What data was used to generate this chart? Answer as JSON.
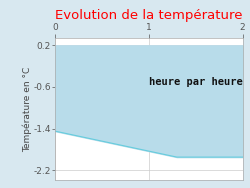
{
  "title": "Evolution de la température",
  "title_color": "#ff0000",
  "ylabel": "Température en °C",
  "xlabel_text": "heure par heure",
  "background_color": "#d8e8f0",
  "plot_bg_color": "#ffffff",
  "fill_color": "#b8dcea",
  "line_color": "#66ccdd",
  "ylim": [
    -2.4,
    0.35
  ],
  "xlim": [
    0,
    2
  ],
  "yticks": [
    0.2,
    -0.6,
    -1.4,
    -2.2
  ],
  "xticks": [
    0,
    1,
    2
  ],
  "x_data": [
    0,
    1.3,
    2
  ],
  "y_data": [
    -1.45,
    -1.95,
    -1.95
  ],
  "y_top": 0.2,
  "title_fontsize": 9.5,
  "ylabel_fontsize": 6.5,
  "annotation_fontsize": 7.5,
  "tick_fontsize": 6.5
}
